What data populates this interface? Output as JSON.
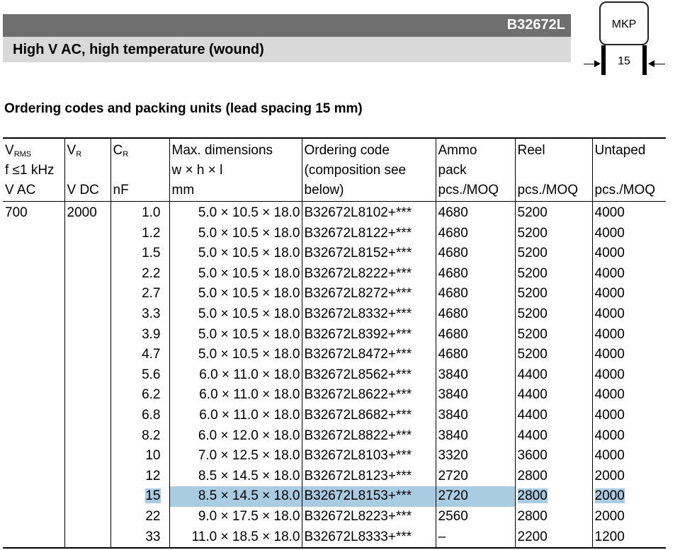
{
  "header": {
    "part_code": "B32672L",
    "subtitle": "High V AC, high temperature (wound)"
  },
  "cap_icon": {
    "label": "MKP",
    "lead_spacing": "15"
  },
  "section_heading": "Ordering codes and packing units (lead spacing 15 mm)",
  "table": {
    "header": {
      "vrms": {
        "main": "V",
        "sub": "RMS",
        "line2": "f ≤1 kHz",
        "line3": "V AC"
      },
      "vr": {
        "main": "V",
        "sub": "R",
        "line3": "V DC"
      },
      "cr": {
        "main": "C",
        "sub": "R",
        "line3": "nF"
      },
      "dims": {
        "line1": "Max. dimensions",
        "line2": "w × h × l",
        "line3": "mm"
      },
      "code": {
        "line1": "Ordering code",
        "line2": "(composition see",
        "line3": "below)"
      },
      "ammo": {
        "line1": "Ammo",
        "line2": "pack",
        "line3": "pcs./MOQ"
      },
      "reel": {
        "line1": "Reel",
        "line3": "pcs./MOQ"
      },
      "untaped": {
        "line1": "Untaped",
        "line3": "pcs./MOQ"
      }
    },
    "vrms_value": "700",
    "vr_value": "2000",
    "rows": [
      {
        "cr": "1.0",
        "dims": "5.0 × 10.5 × 18.0",
        "code": "B32672L8102+***",
        "ammo": "4680",
        "reel": "5200",
        "untaped": "4000"
      },
      {
        "cr": "1.2",
        "dims": "5.0 × 10.5 × 18.0",
        "code": "B32672L8122+***",
        "ammo": "4680",
        "reel": "5200",
        "untaped": "4000"
      },
      {
        "cr": "1.5",
        "dims": "5.0 × 10.5 × 18.0",
        "code": "B32672L8152+***",
        "ammo": "4680",
        "reel": "5200",
        "untaped": "4000"
      },
      {
        "cr": "2.2",
        "dims": "5.0 × 10.5 × 18.0",
        "code": "B32672L8222+***",
        "ammo": "4680",
        "reel": "5200",
        "untaped": "4000"
      },
      {
        "cr": "2.7",
        "dims": "5.0 × 10.5 × 18.0",
        "code": "B32672L8272+***",
        "ammo": "4680",
        "reel": "5200",
        "untaped": "4000"
      },
      {
        "cr": "3.3",
        "dims": "5.0 × 10.5 × 18.0",
        "code": "B32672L8332+***",
        "ammo": "4680",
        "reel": "5200",
        "untaped": "4000"
      },
      {
        "cr": "3.9",
        "dims": "5.0 × 10.5 × 18.0",
        "code": "B32672L8392+***",
        "ammo": "4680",
        "reel": "5200",
        "untaped": "4000"
      },
      {
        "cr": "4.7",
        "dims": "5.0 × 10.5 × 18.0",
        "code": "B32672L8472+***",
        "ammo": "4680",
        "reel": "5200",
        "untaped": "4000"
      },
      {
        "cr": "5.6",
        "dims": "6.0 × 11.0 × 18.0",
        "code": "B32672L8562+***",
        "ammo": "3840",
        "reel": "4400",
        "untaped": "4000"
      },
      {
        "cr": "6.2",
        "dims": "6.0 × 11.0 × 18.0",
        "code": "B32672L8622+***",
        "ammo": "3840",
        "reel": "4400",
        "untaped": "4000"
      },
      {
        "cr": "6.8",
        "dims": "6.0 × 11.0 × 18.0",
        "code": "B32672L8682+***",
        "ammo": "3840",
        "reel": "4400",
        "untaped": "4000"
      },
      {
        "cr": "8.2",
        "dims": "6.0 × 12.0 × 18.0",
        "code": "B32672L8822+***",
        "ammo": "3840",
        "reel": "4400",
        "untaped": "4000"
      },
      {
        "cr": "10",
        "dims": "7.0 × 12.5 × 18.0",
        "code": "B32672L8103+***",
        "ammo": "3320",
        "reel": "3600",
        "untaped": "4000"
      },
      {
        "cr": "12",
        "dims": "8.5 × 14.5 × 18.0",
        "code": "B32672L8123+***",
        "ammo": "2720",
        "reel": "2800",
        "untaped": "2000"
      },
      {
        "cr": "15",
        "dims": "8.5 × 14.5 × 18.0",
        "code": "B32672L8153+***",
        "ammo": "2720",
        "reel": "2800",
        "untaped": "2000"
      },
      {
        "cr": "22",
        "dims": "9.0 × 17.5 × 18.0",
        "code": "B32672L8223+***",
        "ammo": "2560",
        "reel": "2800",
        "untaped": "2000"
      },
      {
        "cr": "33",
        "dims": "11.0 × 18.5 × 18.0",
        "code": "B32672L8333+***",
        "ammo": "–",
        "reel": "2200",
        "untaped": "1200"
      }
    ]
  },
  "highlight": {
    "color": "#a9cce3"
  }
}
